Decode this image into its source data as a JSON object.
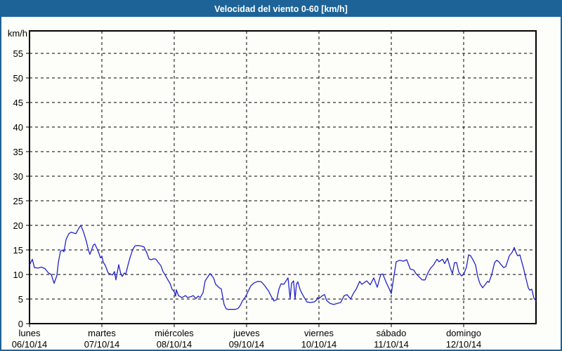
{
  "window": {
    "title": "Velocidad del viento 0-60 [km/h]"
  },
  "colors": {
    "titlebar_bg": "#1d6397",
    "frame": "#1d6397",
    "title_text": "#ffffff",
    "plot_line": "#2323c8",
    "grid": "#000000",
    "axis": "#000000",
    "label_text": "#000000",
    "background": "#fdfdfa"
  },
  "chart_data": {
    "type": "line",
    "title": "Velocidad del viento 0-60 [km/h]",
    "ylabel": "km/h",
    "ylim": [
      0,
      60
    ],
    "yticks": [
      0,
      5,
      10,
      15,
      20,
      25,
      30,
      35,
      40,
      45,
      50,
      55
    ],
    "xlim_days": [
      0,
      7
    ],
    "grid": "dashed",
    "legend": "none",
    "x_days": [
      {
        "name": "lunes",
        "date": "06/10/14"
      },
      {
        "name": "martes",
        "date": "07/10/14"
      },
      {
        "name": "miércoles",
        "date": "08/10/14"
      },
      {
        "name": "jueves",
        "date": "09/10/14"
      },
      {
        "name": "viernes",
        "date": "10/10/14"
      },
      {
        "name": "sábado",
        "date": "11/10/14"
      },
      {
        "name": "domingo",
        "date": "12/10/14"
      }
    ],
    "series": [
      {
        "name": "velocidad del viento",
        "units": "km/h",
        "x_units": "days from 06/10/14",
        "points": [
          [
            0.0,
            11.9
          ],
          [
            0.039,
            13.1
          ],
          [
            0.068,
            11.4
          ],
          [
            0.117,
            11.3
          ],
          [
            0.165,
            11.5
          ],
          [
            0.214,
            11.2
          ],
          [
            0.262,
            10.3
          ],
          [
            0.301,
            10.0
          ],
          [
            0.34,
            8.2
          ],
          [
            0.379,
            9.8
          ],
          [
            0.398,
            12.4
          ],
          [
            0.427,
            14.7
          ],
          [
            0.456,
            15.0
          ],
          [
            0.476,
            14.6
          ],
          [
            0.505,
            17.1
          ],
          [
            0.544,
            18.3
          ],
          [
            0.573,
            18.6
          ],
          [
            0.621,
            18.4
          ],
          [
            0.641,
            18.3
          ],
          [
            0.689,
            19.6
          ],
          [
            0.709,
            20.0
          ],
          [
            0.748,
            18.6
          ],
          [
            0.786,
            16.7
          ],
          [
            0.816,
            14.9
          ],
          [
            0.835,
            14.1
          ],
          [
            0.883,
            16.0
          ],
          [
            0.903,
            16.2
          ],
          [
            0.942,
            15.0
          ],
          [
            0.981,
            13.4
          ],
          [
            1.0,
            13.7
          ],
          [
            1.019,
            12.5
          ],
          [
            1.049,
            11.8
          ],
          [
            1.087,
            10.3
          ],
          [
            1.117,
            10.1
          ],
          [
            1.146,
            9.9
          ],
          [
            1.175,
            10.6
          ],
          [
            1.194,
            8.9
          ],
          [
            1.233,
            12.0
          ],
          [
            1.262,
            10.1
          ],
          [
            1.282,
            9.6
          ],
          [
            1.311,
            10.3
          ],
          [
            1.33,
            10.1
          ],
          [
            1.359,
            11.8
          ],
          [
            1.388,
            13.4
          ],
          [
            1.427,
            15.1
          ],
          [
            1.456,
            15.8
          ],
          [
            1.485,
            15.9
          ],
          [
            1.544,
            15.8
          ],
          [
            1.583,
            15.6
          ],
          [
            1.621,
            14.4
          ],
          [
            1.65,
            13.2
          ],
          [
            1.68,
            13.0
          ],
          [
            1.718,
            13.2
          ],
          [
            1.748,
            13.1
          ],
          [
            1.777,
            12.5
          ],
          [
            1.816,
            11.8
          ],
          [
            1.845,
            10.6
          ],
          [
            1.874,
            9.9
          ],
          [
            1.913,
            8.9
          ],
          [
            1.942,
            8.2
          ],
          [
            1.971,
            7.0
          ],
          [
            2.0,
            6.5
          ],
          [
            2.019,
            5.6
          ],
          [
            2.029,
            6.9
          ],
          [
            2.058,
            5.7
          ],
          [
            2.107,
            5.3
          ],
          [
            2.155,
            5.7
          ],
          [
            2.184,
            5.3
          ],
          [
            2.233,
            5.5
          ],
          [
            2.262,
            5.7
          ],
          [
            2.301,
            5.1
          ],
          [
            2.33,
            5.6
          ],
          [
            2.359,
            5.3
          ],
          [
            2.398,
            6.3
          ],
          [
            2.427,
            8.7
          ],
          [
            2.495,
            10.2
          ],
          [
            2.544,
            9.3
          ],
          [
            2.573,
            8.0
          ],
          [
            2.621,
            7.3
          ],
          [
            2.65,
            7.1
          ],
          [
            2.689,
            3.9
          ],
          [
            2.718,
            3.0
          ],
          [
            2.748,
            2.9
          ],
          [
            2.796,
            2.9
          ],
          [
            2.845,
            2.9
          ],
          [
            2.883,
            3.1
          ],
          [
            2.913,
            3.7
          ],
          [
            2.942,
            4.6
          ],
          [
            2.981,
            5.4
          ],
          [
            3.0,
            5.9
          ],
          [
            3.058,
            7.7
          ],
          [
            3.107,
            8.3
          ],
          [
            3.155,
            8.6
          ],
          [
            3.204,
            8.5
          ],
          [
            3.252,
            7.7
          ],
          [
            3.301,
            6.7
          ],
          [
            3.35,
            5.3
          ],
          [
            3.379,
            4.6
          ],
          [
            3.417,
            4.9
          ],
          [
            3.447,
            7.0
          ],
          [
            3.476,
            8.1
          ],
          [
            3.515,
            8.0
          ],
          [
            3.563,
            9.1
          ],
          [
            3.573,
            9.3
          ],
          [
            3.602,
            5.1
          ],
          [
            3.621,
            8.2
          ],
          [
            3.65,
            8.7
          ],
          [
            3.67,
            5.0
          ],
          [
            3.689,
            8.0
          ],
          [
            3.709,
            8.5
          ],
          [
            3.738,
            7.0
          ],
          [
            3.767,
            6.1
          ],
          [
            3.806,
            5.1
          ],
          [
            3.835,
            4.4
          ],
          [
            3.883,
            4.3
          ],
          [
            3.932,
            4.4
          ],
          [
            3.961,
            4.7
          ],
          [
            3.981,
            5.3
          ],
          [
            4.0,
            5.1
          ],
          [
            4.049,
            5.7
          ],
          [
            4.078,
            5.9
          ],
          [
            4.107,
            4.7
          ],
          [
            4.155,
            4.1
          ],
          [
            4.204,
            3.9
          ],
          [
            4.252,
            4.1
          ],
          [
            4.301,
            4.3
          ],
          [
            4.35,
            5.7
          ],
          [
            4.388,
            5.9
          ],
          [
            4.437,
            5.0
          ],
          [
            4.485,
            6.4
          ],
          [
            4.515,
            7.0
          ],
          [
            4.563,
            8.6
          ],
          [
            4.592,
            8.0
          ],
          [
            4.631,
            8.4
          ],
          [
            4.66,
            8.7
          ],
          [
            4.709,
            7.9
          ],
          [
            4.757,
            9.3
          ],
          [
            4.806,
            7.4
          ],
          [
            4.854,
            10.0
          ],
          [
            4.883,
            10.1
          ],
          [
            4.932,
            8.3
          ],
          [
            4.961,
            7.4
          ],
          [
            5.0,
            6.1
          ],
          [
            5.029,
            9.0
          ],
          [
            5.068,
            12.6
          ],
          [
            5.117,
            12.9
          ],
          [
            5.165,
            12.7
          ],
          [
            5.214,
            13.0
          ],
          [
            5.262,
            11.1
          ],
          [
            5.311,
            10.9
          ],
          [
            5.34,
            10.2
          ],
          [
            5.379,
            9.6
          ],
          [
            5.427,
            8.9
          ],
          [
            5.466,
            8.9
          ],
          [
            5.505,
            10.3
          ],
          [
            5.544,
            11.3
          ],
          [
            5.583,
            11.9
          ],
          [
            5.631,
            13.1
          ],
          [
            5.66,
            12.6
          ],
          [
            5.709,
            13.1
          ],
          [
            5.738,
            12.2
          ],
          [
            5.777,
            13.3
          ],
          [
            5.816,
            11.3
          ],
          [
            5.845,
            10.2
          ],
          [
            5.874,
            12.4
          ],
          [
            5.903,
            12.4
          ],
          [
            5.932,
            10.5
          ],
          [
            5.971,
            9.7
          ],
          [
            6.0,
            10.0
          ],
          [
            6.039,
            11.5
          ],
          [
            6.068,
            14.0
          ],
          [
            6.097,
            13.8
          ],
          [
            6.136,
            12.8
          ],
          [
            6.165,
            11.9
          ],
          [
            6.194,
            9.6
          ],
          [
            6.223,
            8.2
          ],
          [
            6.262,
            7.3
          ],
          [
            6.301,
            8.0
          ],
          [
            6.33,
            8.6
          ],
          [
            6.35,
            8.4
          ],
          [
            6.388,
            10.0
          ],
          [
            6.427,
            12.4
          ],
          [
            6.456,
            12.9
          ],
          [
            6.485,
            12.6
          ],
          [
            6.505,
            12.2
          ],
          [
            6.553,
            11.4
          ],
          [
            6.583,
            11.6
          ],
          [
            6.631,
            13.8
          ],
          [
            6.67,
            14.5
          ],
          [
            6.699,
            15.5
          ],
          [
            6.728,
            14.3
          ],
          [
            6.748,
            13.8
          ],
          [
            6.777,
            14.0
          ],
          [
            6.825,
            11.4
          ],
          [
            6.864,
            9.0
          ],
          [
            6.893,
            7.3
          ],
          [
            6.913,
            6.8
          ],
          [
            6.942,
            7.0
          ],
          [
            6.971,
            5.2
          ],
          [
            7.0,
            4.6
          ]
        ]
      }
    ]
  }
}
